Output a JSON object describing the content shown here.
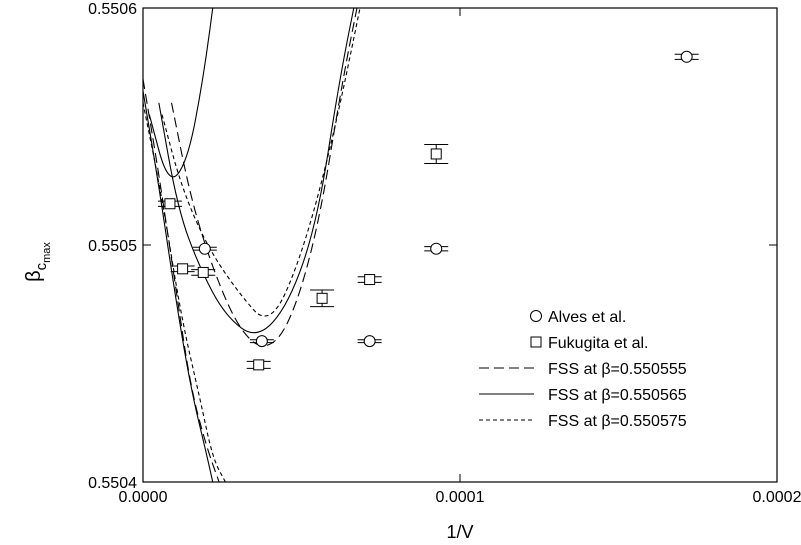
{
  "chart_data": {
    "type": "scatter",
    "xlabel": "1/V",
    "ylabel": "β",
    "ylabel_sub": "c",
    "ylabel_subsub": "max",
    "xlim": [
      0.0,
      0.0002
    ],
    "ylim": [
      0.5504,
      0.5506
    ],
    "x_ticks": [
      {
        "value": 0.0,
        "label": "0.0000"
      },
      {
        "value": 0.0001,
        "label": "0.0001"
      },
      {
        "value": 0.0002,
        "label": "0.0002"
      }
    ],
    "y_ticks": [
      {
        "value": 0.5504,
        "label": "0.5504"
      },
      {
        "value": 0.5505,
        "label": "0.5505"
      },
      {
        "value": 0.5506,
        "label": "0.5506"
      }
    ],
    "grid": false,
    "legend_position": "right",
    "legend": [
      {
        "label": "Alves et al.",
        "marker": "circle"
      },
      {
        "label": "Fukugita et al.",
        "marker": "square"
      },
      {
        "label": "FSS at β=0.550555",
        "line": "long-dash"
      },
      {
        "label": "FSS at β=0.550565",
        "line": "solid"
      },
      {
        "label": "FSS at β=0.550575",
        "line": "short-dash"
      }
    ],
    "series": [
      {
        "name": "Alves et al.",
        "marker": "circle",
        "points": [
          {
            "x": 1.95e-05,
            "y": 0.55049843,
            "err": 6e-07
          },
          {
            "x": 3.75e-05,
            "y": 0.55045943,
            "err": 6e-07
          },
          {
            "x": 7.15e-05,
            "y": 0.55045943,
            "err": 6e-07
          },
          {
            "x": 9.25e-05,
            "y": 0.55049843,
            "err": 9e-07
          },
          {
            "x": 0.0001715,
            "y": 0.55057941,
            "err": 1.1e-06
          }
        ]
      },
      {
        "name": "Fukugita et al.",
        "marker": "square",
        "points": [
          {
            "x": 8.5e-06,
            "y": 0.55051741,
            "err": 1.1e-06
          },
          {
            "x": 1.25e-05,
            "y": 0.55048995,
            "err": 1.2e-06
          },
          {
            "x": 1.9e-05,
            "y": 0.55048843,
            "err": 1.2e-06
          },
          {
            "x": 3.65e-05,
            "y": 0.55044942,
            "err": 1.5e-06
          },
          {
            "x": 5.65e-05,
            "y": 0.5504775,
            "err": 3.5e-06
          },
          {
            "x": 7.15e-05,
            "y": 0.55048542,
            "err": 1.2e-06
          },
          {
            "x": 9.25e-05,
            "y": 0.55053841,
            "err": 4e-06
          }
        ]
      }
    ],
    "curves": [
      {
        "name": "FSS at β=0.550555",
        "line": "long-dash",
        "bands": [
          {
            "side": "left",
            "points": [
              [
                0.0,
                0.55057
              ],
              [
                5e-06,
                0.55053
              ],
              [
                1e-05,
                0.550485
              ],
              [
                1.5e-05,
                0.55044
              ],
              [
                2e-05,
                0.550415
              ],
              [
                2.4e-05,
                0.5504
              ]
            ]
          },
          {
            "side": "right",
            "points": [
              [
                9e-06,
                0.55056
              ],
              [
                1.5e-05,
                0.55052
              ],
              [
                2.2e-05,
                0.55049
              ],
              [
                3e-05,
                0.550465
              ],
              [
                3.8e-05,
                0.550455
              ],
              [
                4.6e-05,
                0.550465
              ],
              [
                5.5e-05,
                0.550505
              ],
              [
                6.3e-05,
                0.55057
              ],
              [
                6.9e-05,
                0.55061
              ]
            ]
          }
        ]
      },
      {
        "name": "FSS at β=0.550565",
        "line": "solid",
        "bands": [
          {
            "side": "left",
            "points": [
              [
                0.0,
                0.550565
              ],
              [
                5e-06,
                0.550525
              ],
              [
                1e-05,
                0.55048
              ],
              [
                1.5e-05,
                0.55044
              ],
              [
                2e-05,
                0.550412
              ],
              [
                2.2e-05,
                0.5504
              ]
            ]
          },
          {
            "side": "right",
            "points": [
              [
                5e-06,
                0.55056
              ],
              [
                1.1e-05,
                0.550515
              ],
              [
                1.8e-05,
                0.55049
              ],
              [
                2.6e-05,
                0.55047
              ],
              [
                3.6e-05,
                0.55046
              ],
              [
                4.6e-05,
                0.550475
              ],
              [
                5.5e-05,
                0.55051
              ],
              [
                6.2e-05,
                0.55057
              ],
              [
                6.8e-05,
                0.55061
              ]
            ]
          },
          {
            "side": "steep",
            "points": [
              [
                2e-06,
                0.550555
              ],
              [
                8e-06,
                0.550525
              ],
              [
                1.4e-05,
                0.550535
              ],
              [
                1.9e-05,
                0.55057
              ],
              [
                2.3e-05,
                0.55061
              ]
            ]
          }
        ]
      },
      {
        "name": "FSS at β=0.550575",
        "line": "short-dash",
        "bands": [
          {
            "side": "left",
            "points": [
              [
                0.0,
                0.55056
              ],
              [
                6e-06,
                0.55052
              ],
              [
                1.2e-05,
                0.55047
              ],
              [
                1.8e-05,
                0.550435
              ],
              [
                2.2e-05,
                0.55041
              ],
              [
                2.6e-05,
                0.5504
              ]
            ]
          },
          {
            "side": "right",
            "points": [
              [
                6e-06,
                0.550555
              ],
              [
                1.2e-05,
                0.550525
              ],
              [
                2e-05,
                0.5505
              ],
              [
                3e-05,
                0.55048
              ],
              [
                4e-05,
                0.550465
              ],
              [
                5e-05,
                0.550495
              ],
              [
                6e-05,
                0.550545
              ],
              [
                7e-05,
                0.55061
              ]
            ]
          }
        ]
      }
    ]
  }
}
